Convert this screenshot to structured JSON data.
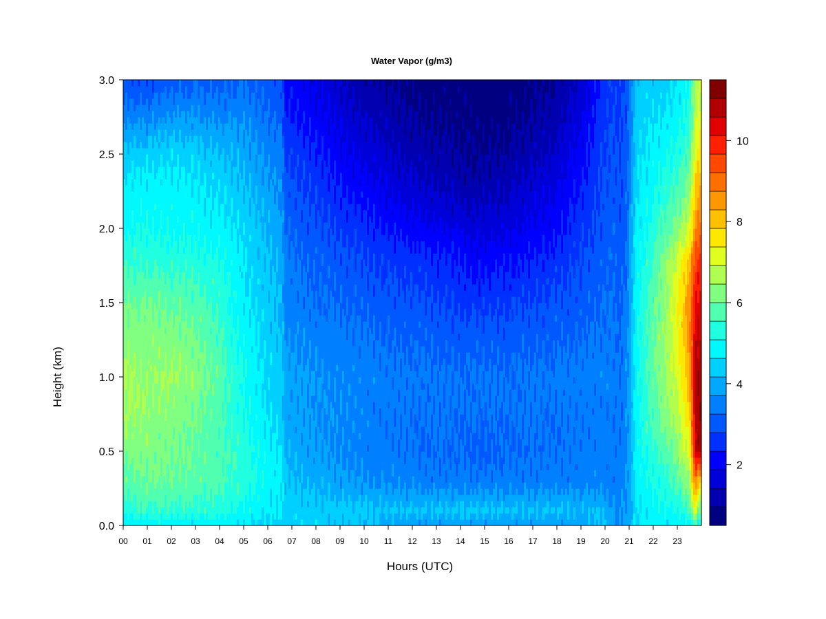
{
  "chart_data": {
    "type": "heatmap",
    "title": "Water Vapor (g/m3)",
    "xlabel": "Hours (UTC)",
    "ylabel": "Height (km)",
    "xlim": [
      0,
      24
    ],
    "ylim": [
      0.0,
      3.0
    ],
    "x_ticks": [
      "00",
      "01",
      "02",
      "03",
      "04",
      "05",
      "06",
      "07",
      "08",
      "09",
      "10",
      "11",
      "12",
      "13",
      "14",
      "15",
      "16",
      "17",
      "18",
      "19",
      "20",
      "21",
      "22",
      "23"
    ],
    "y_ticks": [
      "0.0",
      "0.5",
      "1.0",
      "1.5",
      "2.0",
      "2.5",
      "3.0"
    ],
    "colorbar": {
      "range": [
        0.5,
        11.5
      ],
      "step": 0.5,
      "ticks": [
        "2",
        "4",
        "6",
        "8",
        "10"
      ],
      "colors": [
        "#000080",
        "#0000B0",
        "#0000D8",
        "#0000FF",
        "#0030FF",
        "#0058FF",
        "#0080FF",
        "#00A8FF",
        "#00D0FF",
        "#00F8FF",
        "#20FFE0",
        "#50FFB0",
        "#80FF80",
        "#B0FF50",
        "#E0FF20",
        "#FFE800",
        "#FFC000",
        "#FF9800",
        "#FF7000",
        "#FF4800",
        "#FF2000",
        "#E00000",
        "#B00000",
        "#800000"
      ]
    },
    "samples": {
      "heights": [
        0.0,
        0.1,
        0.3,
        0.5,
        0.8,
        1.0,
        1.3,
        1.5,
        1.8,
        2.0,
        2.3,
        2.5,
        2.8,
        3.0
      ],
      "hours": [
        0,
        1,
        2,
        3,
        4,
        5,
        6,
        6.6,
        6.7,
        8,
        10,
        12,
        14,
        14.7,
        16,
        18,
        19,
        19.8,
        20.3,
        20.6,
        20.9,
        21.3,
        22,
        22.5,
        23,
        23.5,
        23.75,
        23.85
      ],
      "values": [
        [
          4.6,
          4.8,
          4.7,
          4.7,
          4.8,
          4.6,
          4.5,
          4.5,
          4.5,
          4.4,
          4.2,
          3.8,
          3.8,
          3.8,
          3.8,
          3.8,
          3.9,
          4.2,
          3.9,
          3.6,
          3.8,
          4.7,
          4.9,
          4.7,
          4.6,
          4.8,
          5.5,
          4.8
        ],
        [
          5.3,
          5.5,
          5.4,
          5.4,
          5.3,
          5.0,
          4.7,
          4.6,
          4.4,
          4.4,
          4.3,
          4.2,
          4.3,
          4.3,
          4.2,
          4.2,
          4.1,
          4.2,
          3.8,
          3.6,
          3.8,
          4.6,
          4.9,
          5.0,
          5.2,
          5.6,
          7.5,
          6.0
        ],
        [
          5.8,
          6.0,
          6.0,
          5.9,
          5.7,
          5.4,
          4.9,
          4.7,
          4.2,
          4.0,
          3.7,
          3.5,
          3.4,
          3.4,
          3.4,
          3.5,
          3.5,
          3.5,
          3.5,
          3.5,
          3.7,
          4.7,
          5.2,
          5.4,
          5.8,
          6.4,
          9.0,
          8.0
        ],
        [
          6.2,
          6.2,
          6.1,
          5.9,
          5.7,
          5.3,
          4.8,
          4.6,
          4.1,
          3.8,
          3.5,
          3.3,
          3.2,
          3.1,
          3.2,
          3.3,
          3.4,
          3.5,
          3.4,
          3.3,
          3.6,
          4.8,
          5.5,
          5.8,
          6.3,
          7.2,
          10.5,
          10.8
        ],
        [
          6.6,
          6.4,
          6.3,
          6.1,
          5.7,
          5.1,
          4.6,
          4.4,
          3.9,
          3.7,
          3.5,
          3.3,
          3.3,
          3.3,
          3.3,
          3.3,
          3.4,
          3.4,
          3.4,
          3.3,
          3.6,
          4.9,
          5.8,
          6.3,
          6.8,
          7.8,
          10.8,
          11.0
        ],
        [
          6.6,
          6.4,
          6.5,
          6.3,
          5.8,
          5.1,
          4.5,
          4.3,
          3.9,
          3.7,
          3.5,
          3.4,
          3.3,
          3.3,
          3.3,
          3.4,
          3.5,
          3.5,
          3.5,
          3.3,
          3.6,
          5.0,
          5.9,
          6.5,
          7.0,
          8.2,
          10.8,
          11.0
        ],
        [
          6.3,
          6.2,
          6.2,
          6.1,
          5.6,
          4.9,
          4.4,
          4.2,
          3.7,
          3.5,
          3.3,
          3.1,
          3.0,
          3.0,
          3.0,
          3.1,
          3.2,
          3.3,
          3.4,
          3.2,
          3.5,
          5.0,
          5.9,
          6.6,
          7.3,
          8.6,
          10.5,
          10.6
        ],
        [
          6.0,
          6.0,
          5.9,
          5.8,
          5.4,
          4.8,
          4.3,
          4.1,
          3.5,
          3.3,
          3.1,
          2.9,
          2.7,
          2.6,
          2.7,
          2.9,
          3.0,
          3.2,
          3.3,
          3.1,
          3.4,
          4.9,
          5.8,
          6.4,
          7.3,
          8.6,
          10.2,
          10.3
        ],
        [
          5.4,
          5.4,
          5.3,
          5.3,
          5.1,
          4.6,
          4.2,
          4.0,
          3.4,
          3.1,
          2.8,
          2.5,
          2.3,
          2.1,
          2.2,
          2.5,
          2.8,
          3.0,
          3.2,
          3.0,
          3.3,
          4.8,
          5.6,
          6.2,
          6.9,
          8.0,
          9.5,
          9.7
        ],
        [
          5.0,
          5.1,
          5.0,
          4.9,
          4.8,
          4.5,
          4.1,
          3.9,
          3.2,
          2.9,
          2.5,
          2.1,
          1.8,
          1.6,
          1.8,
          2.2,
          2.6,
          2.9,
          3.1,
          2.9,
          3.2,
          4.7,
          5.3,
          5.8,
          6.2,
          7.0,
          8.6,
          9.0
        ],
        [
          4.7,
          4.8,
          4.8,
          4.7,
          4.5,
          4.2,
          3.8,
          3.6,
          3.0,
          2.6,
          2.0,
          1.5,
          1.2,
          1.1,
          1.3,
          1.8,
          2.3,
          2.8,
          3.0,
          2.8,
          3.1,
          4.6,
          5.0,
          5.3,
          5.6,
          6.2,
          7.8,
          8.2
        ],
        [
          4.4,
          4.4,
          4.5,
          4.4,
          4.2,
          4.0,
          3.6,
          3.4,
          2.8,
          2.4,
          1.7,
          1.2,
          1.0,
          0.9,
          1.0,
          1.5,
          2.1,
          2.7,
          2.9,
          2.8,
          3.0,
          4.5,
          4.8,
          5.0,
          5.2,
          5.7,
          7.2,
          7.5
        ],
        [
          3.4,
          3.4,
          3.6,
          3.6,
          3.5,
          3.5,
          3.2,
          3.0,
          2.4,
          2.0,
          1.3,
          0.9,
          0.8,
          0.7,
          0.8,
          1.1,
          1.7,
          2.5,
          2.8,
          2.7,
          2.9,
          4.4,
          4.5,
          4.6,
          4.8,
          5.2,
          6.8,
          7.0
        ],
        [
          2.8,
          2.8,
          3.0,
          3.1,
          3.1,
          3.2,
          3.0,
          2.8,
          2.2,
          1.8,
          1.1,
          0.8,
          0.7,
          0.6,
          0.7,
          1.0,
          1.5,
          2.4,
          2.7,
          2.7,
          2.8,
          4.3,
          4.3,
          4.4,
          4.6,
          5.0,
          6.6,
          6.8
        ]
      ]
    }
  }
}
